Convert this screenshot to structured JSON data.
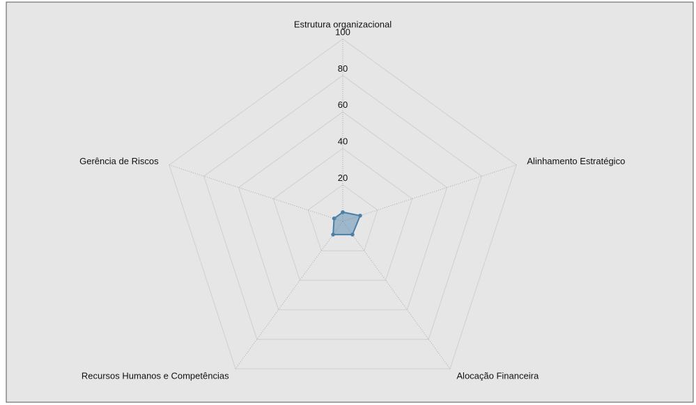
{
  "chart_data": {
    "type": "radar",
    "categories": [
      "Estrutura organizacional",
      "Alinhamento Estratégico",
      "Alocação Financeira",
      "Recursos Humanos e Competências",
      "Gerência de Riscos"
    ],
    "values": [
      5,
      10,
      9,
      9,
      5
    ],
    "color": "#4a7fa8",
    "rlim": [
      0,
      100
    ],
    "rticks": [
      20,
      40,
      60,
      80,
      100
    ],
    "grid": true
  }
}
